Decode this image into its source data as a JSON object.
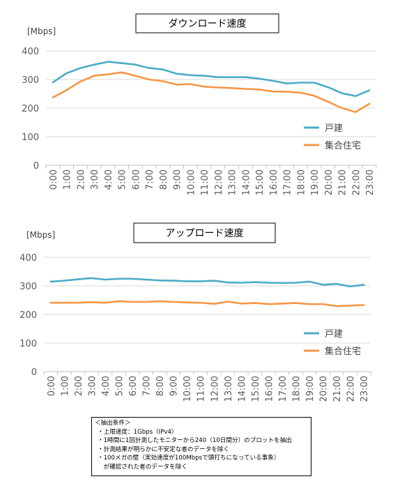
{
  "chart_data": [
    {
      "type": "line",
      "title": "ダウンロード速度",
      "ylabel": "[Mbps]",
      "ylim": [
        0,
        400
      ],
      "yticks": [
        0,
        100,
        200,
        300,
        400
      ],
      "categories": [
        "0:00",
        "1:00",
        "2:00",
        "3:00",
        "4:00",
        "5:00",
        "6:00",
        "7:00",
        "8:00",
        "9:00",
        "10:00",
        "11:00",
        "12:00",
        "13:00",
        "14:00",
        "15:00",
        "16:00",
        "17:00",
        "18:00",
        "19:00",
        "20:00",
        "21:00",
        "22:00",
        "23:00"
      ],
      "grid": true,
      "legend_position": "right",
      "series": [
        {
          "name": "戸建",
          "color": "#4bacc6",
          "values": [
            290,
            322,
            340,
            352,
            362,
            357,
            352,
            340,
            335,
            320,
            315,
            313,
            308,
            308,
            308,
            303,
            295,
            286,
            289,
            289,
            273,
            252,
            242,
            262
          ]
        },
        {
          "name": "集合住宅",
          "color": "#f79646",
          "values": [
            237,
            263,
            293,
            313,
            318,
            325,
            313,
            300,
            294,
            282,
            284,
            275,
            272,
            270,
            267,
            265,
            258,
            257,
            254,
            243,
            222,
            200,
            186,
            215
          ]
        }
      ]
    },
    {
      "type": "line",
      "title": "アップロード速度",
      "ylabel": "[Mbps]",
      "ylim": [
        0,
        400
      ],
      "yticks": [
        0,
        100,
        200,
        300,
        400
      ],
      "categories": [
        "0:00",
        "1:00",
        "2:00",
        "3:00",
        "4:00",
        "5:00",
        "6:00",
        "7:00",
        "8:00",
        "9:00",
        "10:00",
        "11:00",
        "12:00",
        "13:00",
        "14:00",
        "15:00",
        "16:00",
        "17:00",
        "18:00",
        "19:00",
        "20:00",
        "21:00",
        "22:00",
        "23:00"
      ],
      "grid": true,
      "legend_position": "right",
      "series": [
        {
          "name": "戸建",
          "color": "#4bacc6",
          "values": [
            315,
            318,
            323,
            327,
            322,
            325,
            325,
            322,
            319,
            318,
            316,
            316,
            318,
            312,
            311,
            313,
            311,
            310,
            311,
            315,
            304,
            307,
            298,
            304
          ]
        },
        {
          "name": "集合住宅",
          "color": "#f79646",
          "values": [
            241,
            241,
            241,
            243,
            241,
            246,
            244,
            244,
            246,
            244,
            242,
            241,
            237,
            245,
            238,
            240,
            236,
            238,
            240,
            236,
            236,
            229,
            231,
            233
          ]
        }
      ]
    }
  ],
  "notes": {
    "title": "＜抽出条件＞",
    "lines": [
      "・上限速度：1Gbps（IPv4）",
      "・1時間に1回計測したモニターから240（10日間分）のプロットを抽出",
      "・計測結果が明らかに不安定な者のデータを除く",
      "・100メガの壁（実効速度が100Mbpsで頭打ちになっている事象）",
      "　が確認された者のデータを除く"
    ]
  }
}
